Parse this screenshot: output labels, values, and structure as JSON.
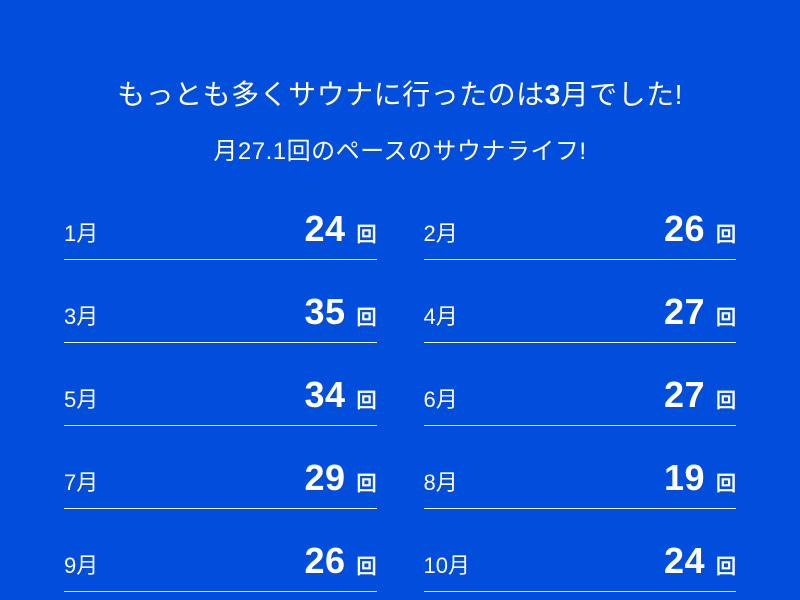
{
  "theme": {
    "background_color": "#004EDB",
    "text_color": "#FFFFFF",
    "divider_color": "rgba(255,255,255,0.92)"
  },
  "header": {
    "title_prefix": "もっとも多くサウナに行ったのは",
    "title_highlight": "3",
    "title_suffix": "月でした!",
    "subtitle": "月27.1回のペースのサウナライフ!"
  },
  "months": [
    {
      "label": "1月",
      "count": "24",
      "unit": "回"
    },
    {
      "label": "2月",
      "count": "26",
      "unit": "回"
    },
    {
      "label": "3月",
      "count": "35",
      "unit": "回"
    },
    {
      "label": "4月",
      "count": "27",
      "unit": "回"
    },
    {
      "label": "5月",
      "count": "34",
      "unit": "回"
    },
    {
      "label": "6月",
      "count": "27",
      "unit": "回"
    },
    {
      "label": "7月",
      "count": "29",
      "unit": "回"
    },
    {
      "label": "8月",
      "count": "19",
      "unit": "回"
    },
    {
      "label": "9月",
      "count": "26",
      "unit": "回"
    },
    {
      "label": "10月",
      "count": "24",
      "unit": "回"
    }
  ]
}
